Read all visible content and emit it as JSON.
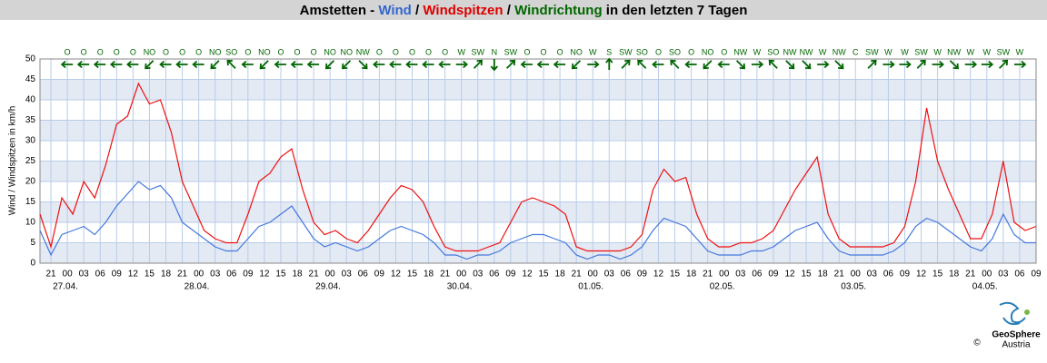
{
  "chart_data": {
    "type": "line",
    "title": [
      "Amstetten - ",
      "Wind",
      " / ",
      "Windspitzen",
      " / ",
      "Windrichtung",
      " in den letzten 7 Tagen"
    ],
    "title_colors": [
      "#000000",
      "#3366cc",
      "#000000",
      "#dd0000",
      "#000000",
      "#006600",
      "#000000"
    ],
    "ylabel": "Wind / Windspitzen in km/h",
    "ylim": [
      0,
      50
    ],
    "yticks": [
      0,
      5,
      10,
      15,
      20,
      25,
      30,
      35,
      40,
      45,
      50
    ],
    "xlim": [
      -5,
      177
    ],
    "xticks": [
      {
        "value": -3,
        "label": "21"
      },
      {
        "value": 0,
        "label": "00"
      },
      {
        "value": 3,
        "label": "03"
      },
      {
        "value": 6,
        "label": "06"
      },
      {
        "value": 9,
        "label": "09"
      },
      {
        "value": 12,
        "label": "12"
      },
      {
        "value": 15,
        "label": "15"
      },
      {
        "value": 18,
        "label": "18"
      },
      {
        "value": 21,
        "label": "21"
      },
      {
        "value": 24,
        "label": "00"
      },
      {
        "value": 27,
        "label": "03"
      },
      {
        "value": 30,
        "label": "06"
      },
      {
        "value": 33,
        "label": "09"
      },
      {
        "value": 36,
        "label": "12"
      },
      {
        "value": 39,
        "label": "15"
      },
      {
        "value": 42,
        "label": "18"
      },
      {
        "value": 45,
        "label": "21"
      },
      {
        "value": 48,
        "label": "00"
      },
      {
        "value": 51,
        "label": "03"
      },
      {
        "value": 54,
        "label": "06"
      },
      {
        "value": 57,
        "label": "09"
      },
      {
        "value": 60,
        "label": "12"
      },
      {
        "value": 63,
        "label": "15"
      },
      {
        "value": 66,
        "label": "18"
      },
      {
        "value": 69,
        "label": "21"
      },
      {
        "value": 72,
        "label": "00"
      },
      {
        "value": 75,
        "label": "03"
      },
      {
        "value": 78,
        "label": "06"
      },
      {
        "value": 81,
        "label": "09"
      },
      {
        "value": 84,
        "label": "12"
      },
      {
        "value": 87,
        "label": "15"
      },
      {
        "value": 90,
        "label": "18"
      },
      {
        "value": 93,
        "label": "21"
      },
      {
        "value": 96,
        "label": "00"
      },
      {
        "value": 99,
        "label": "03"
      },
      {
        "value": 102,
        "label": "06"
      },
      {
        "value": 105,
        "label": "09"
      },
      {
        "value": 108,
        "label": "12"
      },
      {
        "value": 111,
        "label": "15"
      },
      {
        "value": 114,
        "label": "18"
      },
      {
        "value": 117,
        "label": "21"
      },
      {
        "value": 120,
        "label": "00"
      },
      {
        "value": 123,
        "label": "03"
      },
      {
        "value": 126,
        "label": "06"
      },
      {
        "value": 129,
        "label": "09"
      },
      {
        "value": 132,
        "label": "12"
      },
      {
        "value": 135,
        "label": "15"
      },
      {
        "value": 138,
        "label": "18"
      },
      {
        "value": 141,
        "label": "21"
      },
      {
        "value": 144,
        "label": "00"
      },
      {
        "value": 147,
        "label": "03"
      },
      {
        "value": 150,
        "label": "06"
      },
      {
        "value": 153,
        "label": "09"
      },
      {
        "value": 156,
        "label": "12"
      },
      {
        "value": 159,
        "label": "15"
      },
      {
        "value": 162,
        "label": "18"
      },
      {
        "value": 165,
        "label": "21"
      },
      {
        "value": 168,
        "label": "00"
      },
      {
        "value": 171,
        "label": "03"
      },
      {
        "value": 174,
        "label": "06"
      },
      {
        "value": 177,
        "label": "09"
      }
    ],
    "date_labels": [
      {
        "value": 0,
        "label": "27.04."
      },
      {
        "value": 24,
        "label": "28.04."
      },
      {
        "value": 48,
        "label": "29.04."
      },
      {
        "value": 72,
        "label": "30.04."
      },
      {
        "value": 96,
        "label": "01.05."
      },
      {
        "value": 120,
        "label": "02.05."
      },
      {
        "value": 144,
        "label": "03.05."
      },
      {
        "value": 168,
        "label": "04.05."
      }
    ],
    "grid": true,
    "x": [
      -5,
      -3,
      -1,
      1,
      3,
      5,
      7,
      9,
      11,
      13,
      15,
      17,
      19,
      21,
      23,
      25,
      27,
      29,
      31,
      33,
      35,
      37,
      39,
      41,
      43,
      45,
      47,
      49,
      51,
      53,
      55,
      57,
      59,
      61,
      63,
      65,
      67,
      69,
      71,
      73,
      75,
      77,
      79,
      81,
      83,
      85,
      87,
      89,
      91,
      93,
      95,
      97,
      99,
      101,
      103,
      105,
      107,
      109,
      111,
      113,
      115,
      117,
      119,
      121,
      123,
      125,
      127,
      129,
      131,
      133,
      135,
      137,
      139,
      141,
      143,
      145,
      147,
      149,
      151,
      153,
      155,
      157,
      159,
      161,
      163,
      165,
      167,
      169,
      171,
      173,
      175,
      177
    ],
    "series": [
      {
        "name": "Windspitzen",
        "color": "#ee1111",
        "values": [
          12,
          4,
          16,
          12,
          20,
          16,
          24,
          34,
          36,
          44,
          39,
          40,
          32,
          20,
          14,
          8,
          6,
          5,
          5,
          12,
          20,
          22,
          26,
          28,
          18,
          10,
          7,
          8,
          6,
          5,
          8,
          12,
          16,
          19,
          18,
          15,
          9,
          4,
          3,
          3,
          3,
          4,
          5,
          10,
          15,
          16,
          15,
          14,
          12,
          4,
          3,
          3,
          3,
          3,
          4,
          7,
          18,
          23,
          20,
          21,
          12,
          6,
          4,
          4,
          5,
          5,
          6,
          8,
          13,
          18,
          22,
          26,
          12,
          6,
          4,
          4,
          4,
          4,
          5,
          9,
          20,
          38,
          25,
          18,
          12,
          6,
          6,
          12,
          25,
          10,
          8,
          9
        ]
      },
      {
        "name": "Wind",
        "color": "#4477dd",
        "values": [
          8,
          2,
          7,
          8,
          9,
          7,
          10,
          14,
          17,
          20,
          18,
          19,
          16,
          10,
          8,
          6,
          4,
          3,
          3,
          6,
          9,
          10,
          12,
          14,
          10,
          6,
          4,
          5,
          4,
          3,
          4,
          6,
          8,
          9,
          8,
          7,
          5,
          2,
          2,
          1,
          2,
          2,
          3,
          5,
          6,
          7,
          7,
          6,
          5,
          2,
          1,
          2,
          2,
          1,
          2,
          4,
          8,
          11,
          10,
          9,
          6,
          3,
          2,
          2,
          2,
          3,
          3,
          4,
          6,
          8,
          9,
          10,
          6,
          3,
          2,
          2,
          2,
          2,
          3,
          5,
          9,
          11,
          10,
          8,
          6,
          4,
          3,
          6,
          12,
          7,
          5,
          5
        ]
      }
    ],
    "directions": {
      "x": [
        0,
        3,
        6,
        9,
        12,
        15,
        18,
        21,
        24,
        27,
        30,
        33,
        36,
        39,
        42,
        45,
        48,
        51,
        54,
        57,
        60,
        63,
        66,
        69,
        72,
        75,
        78,
        81,
        84,
        87,
        90,
        93,
        96,
        99,
        102,
        105,
        108,
        111,
        114,
        117,
        120,
        123,
        126,
        129,
        132,
        135,
        138,
        141,
        144,
        147,
        150,
        153,
        156,
        159,
        162,
        165,
        168,
        171,
        174
      ],
      "labels": [
        "O",
        "O",
        "O",
        "O",
        "O",
        "NO",
        "O",
        "O",
        "O",
        "NO",
        "SO",
        "O",
        "NO",
        "O",
        "O",
        "O",
        "NO",
        "NO",
        "NW",
        "O",
        "O",
        "O",
        "O",
        "O",
        "W",
        "SW",
        "N",
        "SW",
        "O",
        "O",
        "O",
        "NO",
        "W",
        "S",
        "SW",
        "SO",
        "O",
        "SO",
        "O",
        "NO",
        "O",
        "NW",
        "W",
        "SO",
        "NW",
        "NW",
        "W",
        "NW",
        "C",
        "SW",
        "W",
        "W",
        "SW",
        "W",
        "NW",
        "W",
        "W",
        "SW",
        "W"
      ],
      "color": "#006600"
    },
    "logo": [
      "GeoSphere",
      "Austria"
    ],
    "copyright": "©"
  }
}
